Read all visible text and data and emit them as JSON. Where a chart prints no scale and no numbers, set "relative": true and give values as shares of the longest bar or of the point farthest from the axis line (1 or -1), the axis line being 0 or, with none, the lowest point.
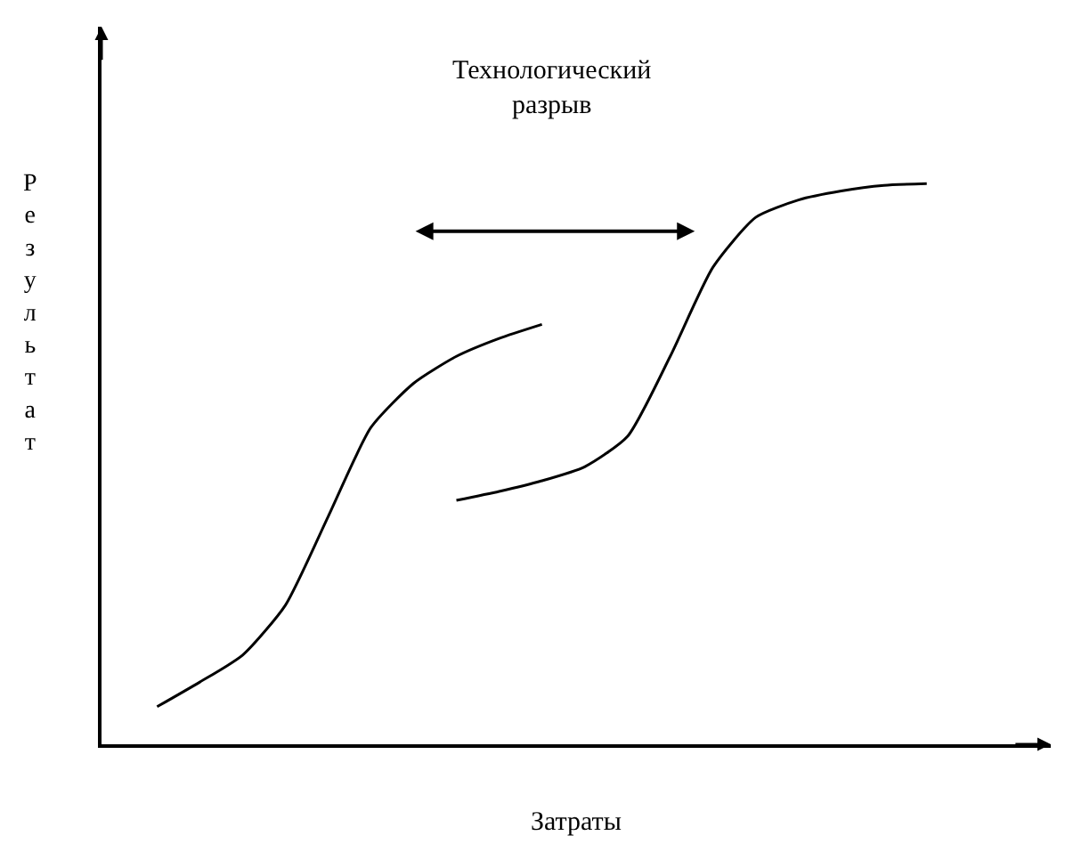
{
  "chart_data": {
    "type": "line",
    "relative": true,
    "xlabel": "Затраты",
    "ylabel": "Результат",
    "annotations": [
      "Технологический разрыв"
    ],
    "categories": [
      null,
      null,
      null,
      null,
      null,
      null,
      null,
      null,
      null,
      null,
      null,
      null,
      null,
      null,
      null,
      null,
      null,
      null,
      null
    ],
    "series": [
      {
        "color": "#000000",
        "values": [
          0.067,
          0.111,
          0.159,
          0.248,
          0.406,
          0.565,
          0.644,
          0.692,
          0.724,
          0.749,
          null,
          null,
          null,
          null,
          null,
          null,
          null,
          null,
          null
        ]
      },
      {
        "color": "#000000",
        "values": [
          null,
          null,
          null,
          null,
          null,
          null,
          null,
          0.435,
          0.451,
          0.47,
          0.495,
          0.549,
          0.692,
          0.851,
          0.94,
          0.971,
          0.987,
          0.997,
          1
        ]
      }
    ],
    "marker": "none",
    "line_style": "solid"
  }
}
